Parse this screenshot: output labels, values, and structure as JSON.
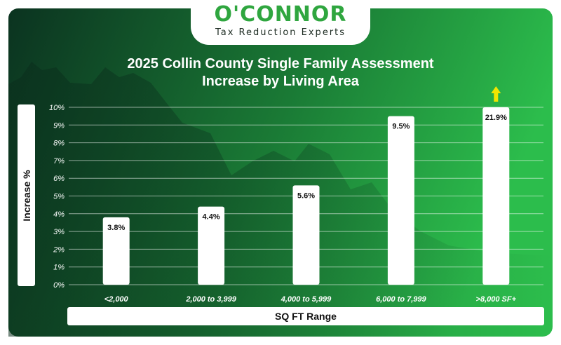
{
  "logo": {
    "brand": "O'CONNOR",
    "tagline": "Tax Reduction Experts"
  },
  "colors": {
    "bg_dark": "#0d3a24",
    "bg_light": "#2ab84a",
    "bar": "#ffffff",
    "arrow": "#f2e500"
  },
  "chart_data": {
    "type": "bar",
    "title": "2025 Collin County Single Family Assessment Increase by Living Area",
    "title_lines": [
      "2025 Collin County Single Family Assessment",
      "Increase by Living Area"
    ],
    "xlabel": "SQ FT Range",
    "ylabel": "Increase %",
    "categories": [
      "<2,000",
      "2,000 to 3,999",
      "4,000 to 5,999",
      "6,000 to 7,999",
      ">8,000 SF+"
    ],
    "values": [
      3.8,
      4.4,
      5.6,
      9.5,
      21.9
    ],
    "data_labels": [
      "3.8%",
      "4.4%",
      "5.6%",
      "9.5%",
      "21.9%"
    ],
    "ylim": [
      0,
      10
    ],
    "yticks": [
      "0%",
      "1%",
      "2%",
      "3%",
      "4%",
      "5%",
      "6%",
      "7%",
      "8%",
      "9%",
      "10%"
    ],
    "grid": true,
    "annotation": "up-arrow above the >8,000 SF+ bar (value exceeds axis range)"
  }
}
